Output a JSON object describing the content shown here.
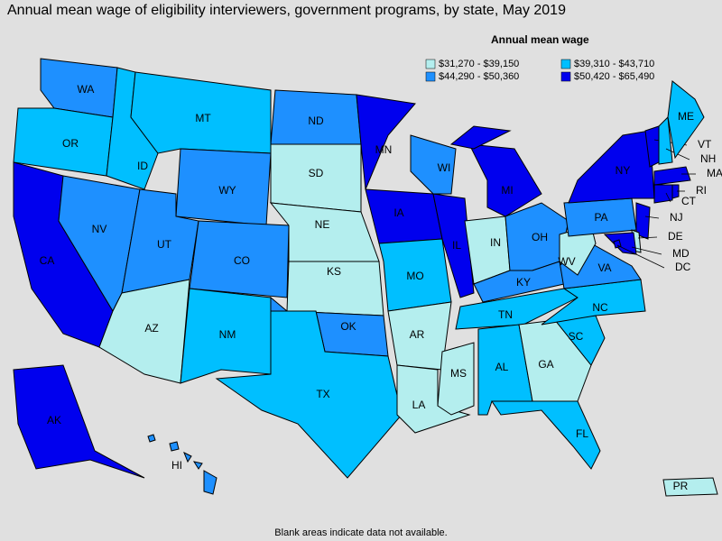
{
  "title": "Annual mean wage of eligibility interviewers, government programs, by state, May 2019",
  "legend": {
    "title": "Annual mean wage",
    "items": [
      {
        "label": "$31,270 - $39,150",
        "color": "#b4eeee"
      },
      {
        "label": "$39,310 - $43,710",
        "color": "#00bfff"
      },
      {
        "label": "$44,290 - $50,360",
        "color": "#1e90ff"
      },
      {
        "label": "$50,420 - $65,490",
        "color": "#0000ee"
      }
    ]
  },
  "states": [
    {
      "label": "WA",
      "color": "#1e90ff"
    },
    {
      "label": "OR",
      "color": "#00bfff"
    },
    {
      "label": "CA",
      "color": "#0000ee"
    },
    {
      "label": "NV",
      "color": "#1e90ff"
    },
    {
      "label": "ID",
      "color": "#00bfff"
    },
    {
      "label": "MT",
      "color": "#00bfff"
    },
    {
      "label": "WY",
      "color": "#1e90ff"
    },
    {
      "label": "UT",
      "color": "#1e90ff"
    },
    {
      "label": "AZ",
      "color": "#b4eeee"
    },
    {
      "label": "CO",
      "color": "#1e90ff"
    },
    {
      "label": "NM",
      "color": "#00bfff"
    },
    {
      "label": "ND",
      "color": "#1e90ff"
    },
    {
      "label": "SD",
      "color": "#b4eeee"
    },
    {
      "label": "NE",
      "color": "#b4eeee"
    },
    {
      "label": "KS",
      "color": "#b4eeee"
    },
    {
      "label": "OK",
      "color": "#1e90ff"
    },
    {
      "label": "TX",
      "color": "#00bfff"
    },
    {
      "label": "MN",
      "color": "#0000ee"
    },
    {
      "label": "IA",
      "color": "#0000ee"
    },
    {
      "label": "MO",
      "color": "#00bfff"
    },
    {
      "label": "AR",
      "color": "#b4eeee"
    },
    {
      "label": "LA",
      "color": "#b4eeee"
    },
    {
      "label": "WI",
      "color": "#1e90ff"
    },
    {
      "label": "IL",
      "color": "#0000ee"
    },
    {
      "label": "MS",
      "color": "#b4eeee"
    },
    {
      "label": "MI",
      "color": "#0000ee"
    },
    {
      "label": "IN",
      "color": "#b4eeee"
    },
    {
      "label": "OH",
      "color": "#1e90ff"
    },
    {
      "label": "KY",
      "color": "#1e90ff"
    },
    {
      "label": "TN",
      "color": "#00bfff"
    },
    {
      "label": "AL",
      "color": "#00bfff"
    },
    {
      "label": "GA",
      "color": "#b4eeee"
    },
    {
      "label": "FL",
      "color": "#00bfff"
    },
    {
      "label": "SC",
      "color": "#00bfff"
    },
    {
      "label": "NC",
      "color": "#00bfff"
    },
    {
      "label": "VA",
      "color": "#1e90ff"
    },
    {
      "label": "WV",
      "color": "#b4eeee"
    },
    {
      "label": "PA",
      "color": "#1e90ff"
    },
    {
      "label": "NY",
      "color": "#0000ee"
    },
    {
      "label": "VT",
      "color": "#0000ee"
    },
    {
      "label": "NH",
      "color": "#00bfff"
    },
    {
      "label": "ME",
      "color": "#00bfff"
    },
    {
      "label": "MA",
      "color": "#0000ee"
    },
    {
      "label": "CT",
      "color": "#0000ee"
    },
    {
      "label": "RI",
      "color": "#0000ee"
    },
    {
      "label": "NJ",
      "color": "#0000ee"
    },
    {
      "label": "DE",
      "color": "#b4eeee"
    },
    {
      "label": "MD",
      "color": "#0000ee"
    },
    {
      "label": "DC",
      "color": "#0000ee"
    },
    {
      "label": "AK",
      "color": "#0000ee"
    },
    {
      "label": "HI",
      "color": "#1e90ff"
    },
    {
      "label": "PR",
      "color": "#b4eeee"
    }
  ],
  "footnote": "Blank areas indicate data not available."
}
